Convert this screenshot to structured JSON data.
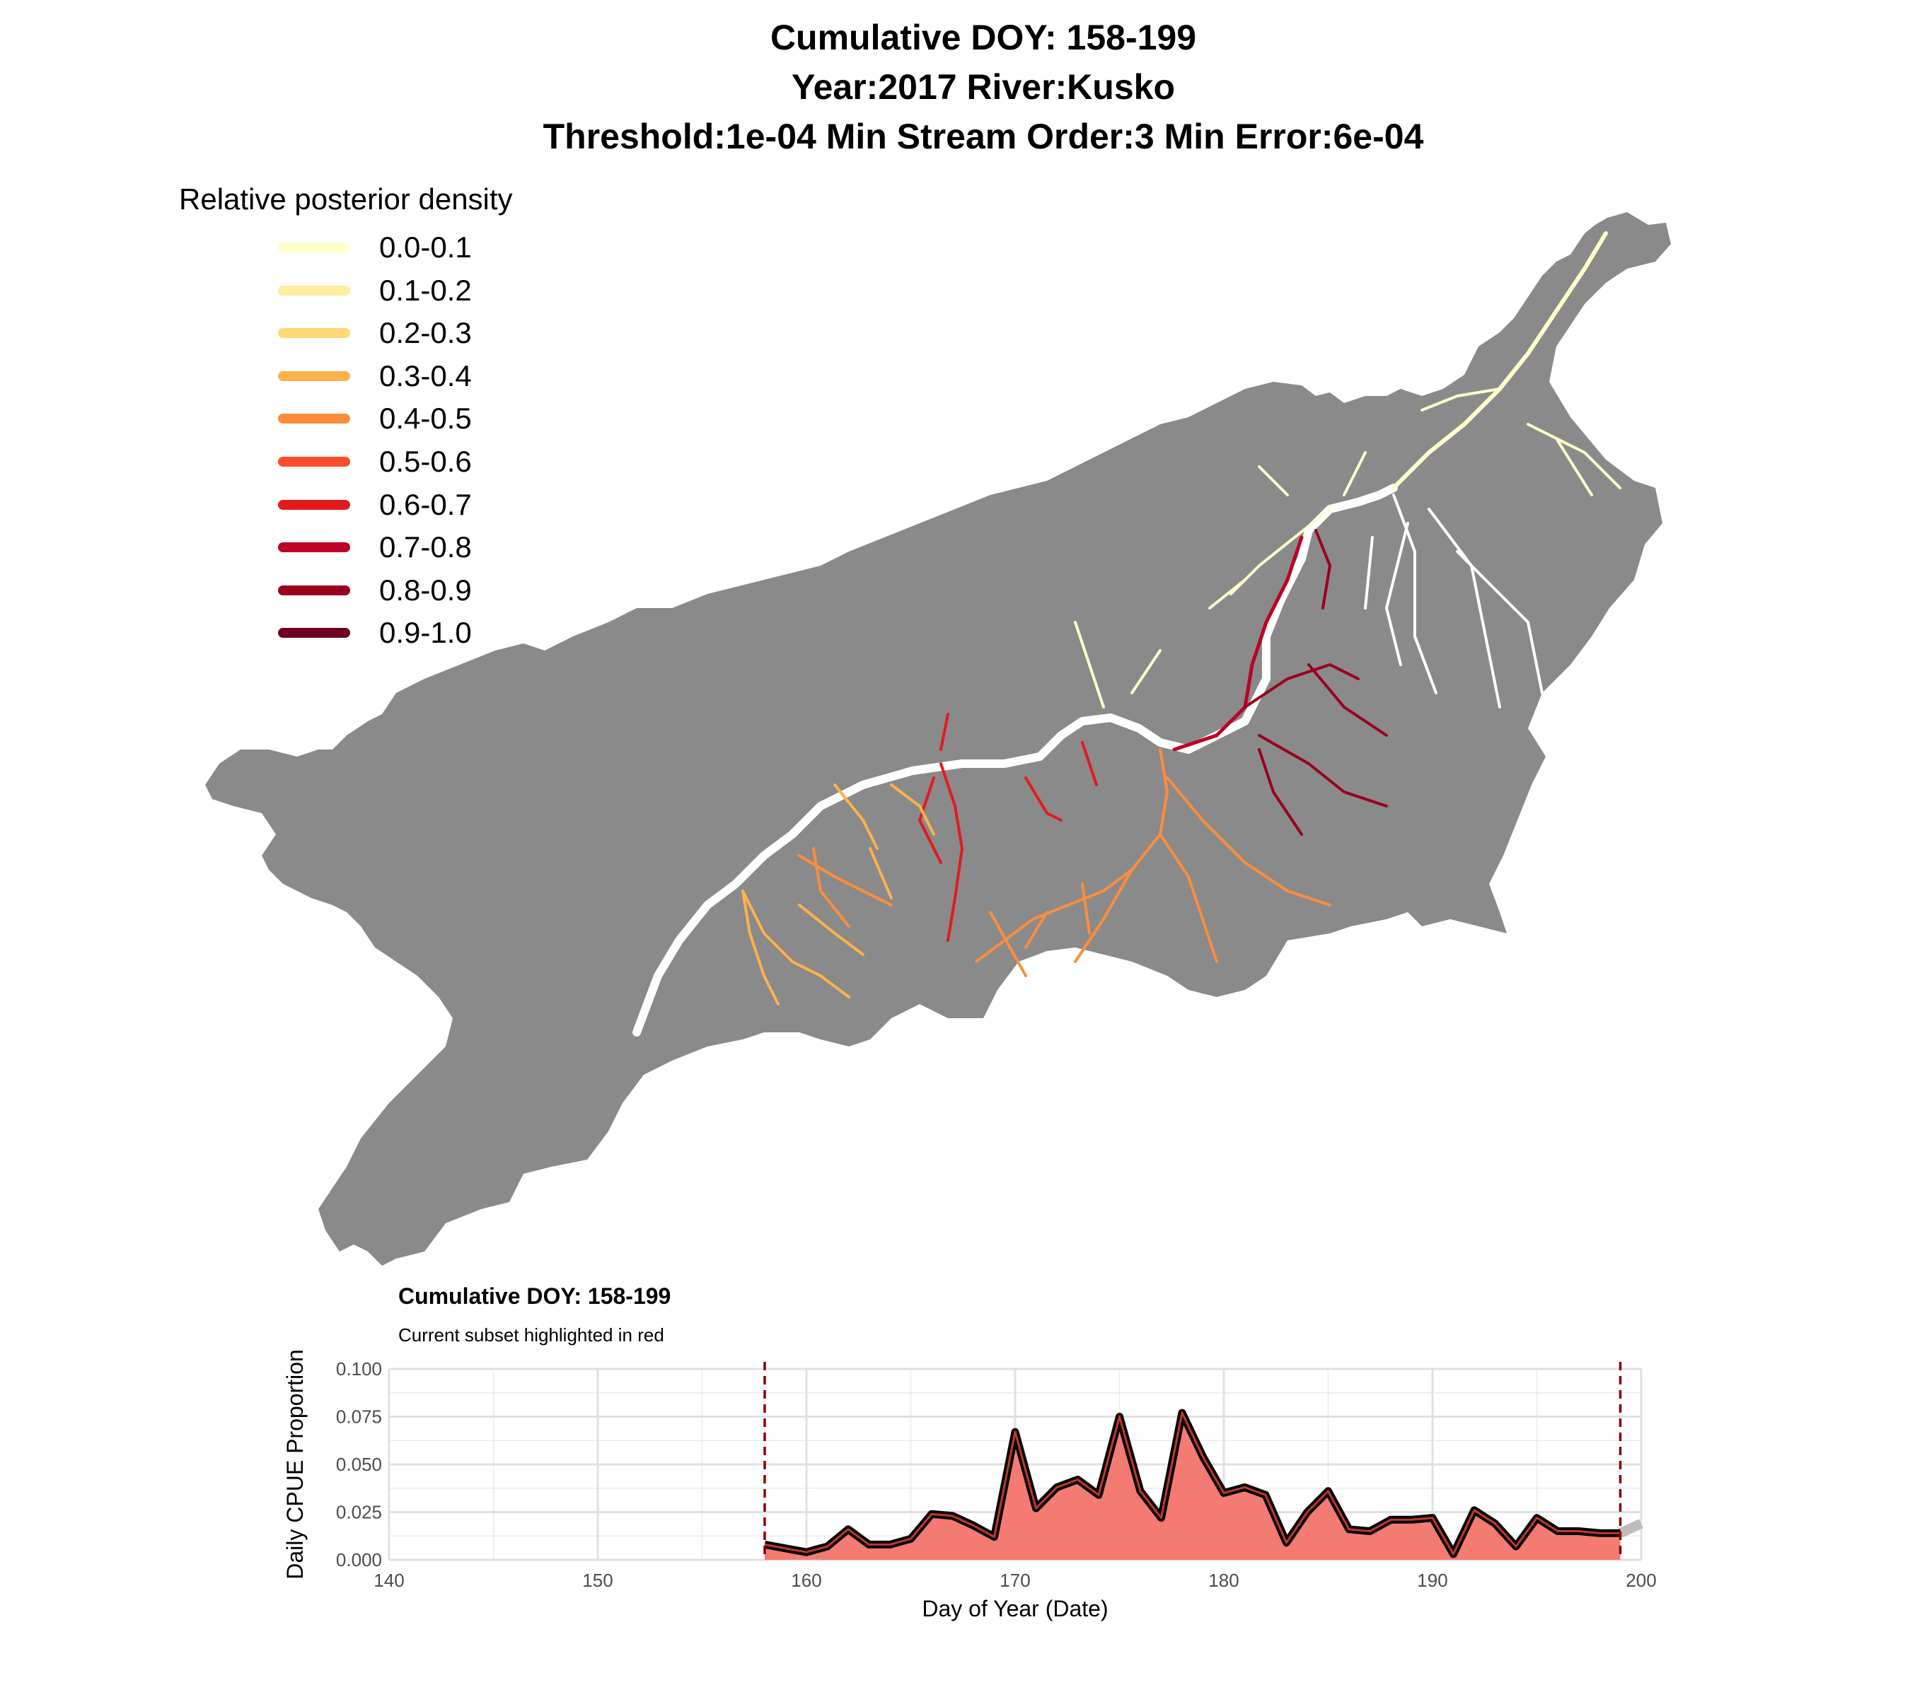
{
  "title": {
    "line1": "Cumulative DOY: 158-199",
    "line2": "Year:2017 River:Kusko",
    "line3": "Threshold:1e-04 Min Stream Order:3 Min Error:6e-04"
  },
  "legend": {
    "title": "Relative posterior density",
    "items": [
      {
        "label": "0.0-0.1",
        "color": "#FFFFCC"
      },
      {
        "label": "0.1-0.2",
        "color": "#FFEDA0"
      },
      {
        "label": "0.2-0.3",
        "color": "#FED976"
      },
      {
        "label": "0.3-0.4",
        "color": "#FEB24C"
      },
      {
        "label": "0.4-0.5",
        "color": "#FD8D3C"
      },
      {
        "label": "0.5-0.6",
        "color": "#FC4E2A"
      },
      {
        "label": "0.6-0.7",
        "color": "#E31A1C"
      },
      {
        "label": "0.7-0.8",
        "color": "#BD0026"
      },
      {
        "label": "0.8-0.9",
        "color": "#99001E"
      },
      {
        "label": "0.9-1.0",
        "color": "#6E0020"
      }
    ]
  },
  "map": {
    "basin_color": "#8A8A8A",
    "mainstem_color": "#FFFFFF"
  },
  "cpue_panel": {
    "title": "Cumulative DOY: 158-199",
    "subtitle": "Current subset highlighted in red",
    "highlight_color": "#F47B72",
    "cutoff_color": "#8B0000"
  },
  "chart_data": {
    "type": "area",
    "xlabel": "Day of Year (Date)",
    "ylabel": "Daily CPUE Proportion",
    "xlim": [
      140,
      200
    ],
    "ylim": [
      0,
      0.1
    ],
    "x_ticks": [
      "140",
      "150",
      "160",
      "170",
      "180",
      "190",
      "200"
    ],
    "y_ticks": [
      "0.000",
      "0.025",
      "0.050",
      "0.075",
      "0.100"
    ],
    "highlight_range": [
      158,
      199
    ],
    "grid": true,
    "x": [
      158,
      159,
      160,
      161,
      162,
      163,
      164,
      165,
      166,
      167,
      168,
      169,
      170,
      171,
      172,
      173,
      174,
      175,
      176,
      177,
      178,
      179,
      180,
      181,
      182,
      183,
      184,
      185,
      186,
      187,
      188,
      189,
      190,
      191,
      192,
      193,
      194,
      195,
      196,
      197,
      198,
      199,
      200
    ],
    "values": [
      0.008,
      0.006,
      0.004,
      0.007,
      0.016,
      0.008,
      0.008,
      0.011,
      0.024,
      0.023,
      0.018,
      0.012,
      0.067,
      0.027,
      0.038,
      0.042,
      0.034,
      0.075,
      0.036,
      0.022,
      0.077,
      0.054,
      0.035,
      0.038,
      0.034,
      0.009,
      0.025,
      0.036,
      0.016,
      0.015,
      0.021,
      0.021,
      0.022,
      0.003,
      0.026,
      0.019,
      0.007,
      0.022,
      0.015,
      0.015,
      0.014,
      0.014,
      0.019
    ]
  }
}
